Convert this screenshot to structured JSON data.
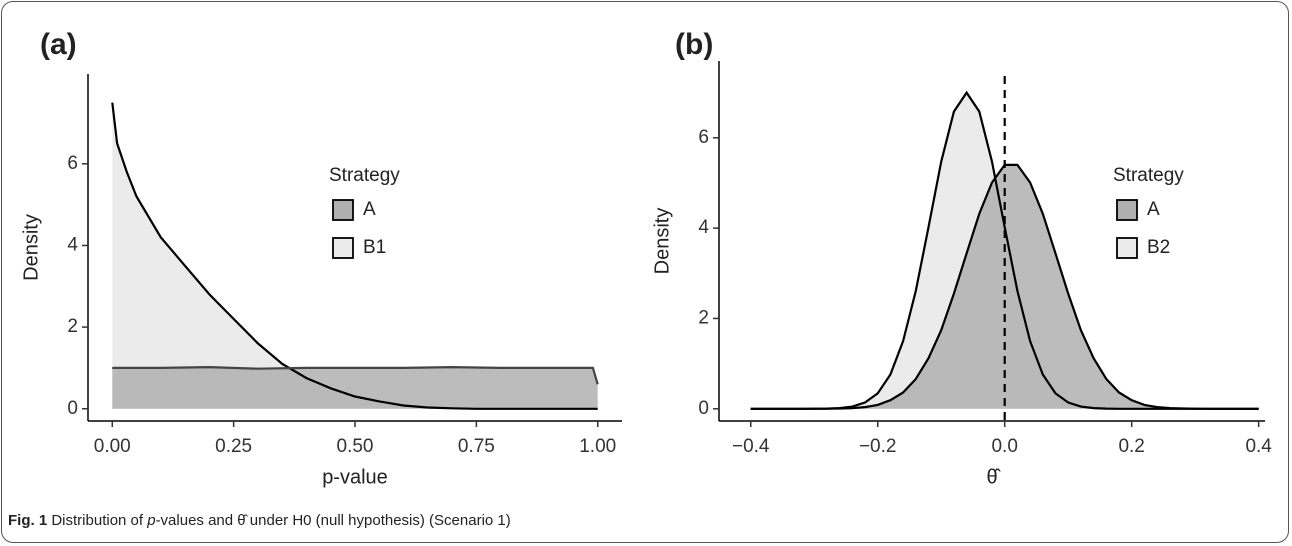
{
  "chart_data": [
    {
      "type": "area",
      "panel_label": "(a)",
      "x_label": "p-value",
      "y_label": "Density",
      "xlim": [
        -0.05,
        1.05
      ],
      "ylim": [
        -0.3,
        8.2
      ],
      "xticks": [
        {
          "value": 0,
          "label": "0.00"
        },
        {
          "value": 0.25,
          "label": "0.25"
        },
        {
          "value": 0.5,
          "label": "0.50"
        },
        {
          "value": 0.75,
          "label": "0.75"
        },
        {
          "value": 1,
          "label": "1.00"
        }
      ],
      "yticks": [
        0,
        2,
        4,
        6
      ],
      "legend_title": "Strategy",
      "series": [
        {
          "name": "A",
          "color": "#b0b0b0",
          "line_color": "#444444",
          "x": [
            0,
            0.1,
            0.2,
            0.3,
            0.4,
            0.5,
            0.6,
            0.7,
            0.8,
            0.9,
            0.99,
            1.0
          ],
          "values": [
            1.0,
            1.0,
            1.02,
            0.98,
            1.0,
            1.0,
            1.0,
            1.02,
            1.0,
            1.0,
            1.0,
            0.6
          ]
        },
        {
          "name": "B1",
          "color": "#ebebeb",
          "line_color": "#000000",
          "x": [
            0,
            0.01,
            0.03,
            0.05,
            0.1,
            0.15,
            0.2,
            0.25,
            0.3,
            0.35,
            0.4,
            0.45,
            0.5,
            0.55,
            0.6,
            0.65,
            0.7,
            0.75,
            0.8,
            1.0
          ],
          "values": [
            7.5,
            6.5,
            5.8,
            5.2,
            4.2,
            3.5,
            2.8,
            2.2,
            1.6,
            1.1,
            0.75,
            0.5,
            0.3,
            0.18,
            0.08,
            0.03,
            0.01,
            0,
            0,
            0
          ]
        }
      ]
    },
    {
      "type": "area",
      "panel_label": "(b)",
      "x_label": "θ̂",
      "y_label": "Density",
      "xlim": [
        -0.45,
        0.41
      ],
      "ylim": [
        -0.27,
        7.7
      ],
      "xticks": [
        {
          "value": -0.4,
          "label": "−0.4"
        },
        {
          "value": -0.2,
          "label": "−0.2"
        },
        {
          "value": 0,
          "label": "0.0"
        },
        {
          "value": 0.2,
          "label": "0.2"
        },
        {
          "value": 0.4,
          "label": "0.4"
        }
      ],
      "yticks": [
        0,
        2,
        4,
        6
      ],
      "vline": 0,
      "legend_title": "Strategy",
      "series": [
        {
          "name": "A",
          "color": "#b0b0b0",
          "line_color": "#000000",
          "x": [
            -0.4,
            -0.32,
            -0.28,
            -0.26,
            -0.24,
            -0.22,
            -0.2,
            -0.18,
            -0.16,
            -0.14,
            -0.12,
            -0.1,
            -0.08,
            -0.06,
            -0.04,
            -0.02,
            0,
            0.02,
            0.04,
            0.06,
            0.08,
            0.1,
            0.12,
            0.14,
            0.16,
            0.18,
            0.2,
            0.22,
            0.24,
            0.26,
            0.28,
            0.3,
            0.32,
            0.4
          ],
          "values": [
            0,
            0,
            0.002,
            0.006,
            0.016,
            0.038,
            0.087,
            0.19,
            0.36,
            0.66,
            1.12,
            1.74,
            2.55,
            3.44,
            4.32,
            5.01,
            5.4,
            5.4,
            5.01,
            4.32,
            3.44,
            2.55,
            1.74,
            1.12,
            0.66,
            0.36,
            0.19,
            0.087,
            0.038,
            0.016,
            0.006,
            0.002,
            0,
            0
          ]
        },
        {
          "name": "B2",
          "color": "#ebebeb",
          "line_color": "#000000",
          "x": [
            -0.4,
            -0.32,
            -0.28,
            -0.26,
            -0.24,
            -0.22,
            -0.2,
            -0.18,
            -0.16,
            -0.14,
            -0.12,
            -0.1,
            -0.08,
            -0.06,
            -0.04,
            -0.02,
            0,
            0.02,
            0.04,
            0.06,
            0.08,
            0.1,
            0.12,
            0.14,
            0.16,
            0.18,
            0.4
          ],
          "values": [
            0,
            0,
            0.004,
            0.015,
            0.048,
            0.14,
            0.34,
            0.76,
            1.5,
            2.61,
            4.02,
            5.47,
            6.58,
            7.0,
            6.58,
            5.47,
            4.02,
            2.61,
            1.5,
            0.76,
            0.34,
            0.14,
            0.048,
            0.015,
            0.004,
            0,
            0
          ]
        }
      ]
    }
  ],
  "caption": {
    "label": "Fig. 1",
    "parts": [
      "Distribution of ",
      "p",
      "-values and ",
      "θ̂",
      " under H0 (null hypothesis) (Scenario 1)"
    ]
  }
}
